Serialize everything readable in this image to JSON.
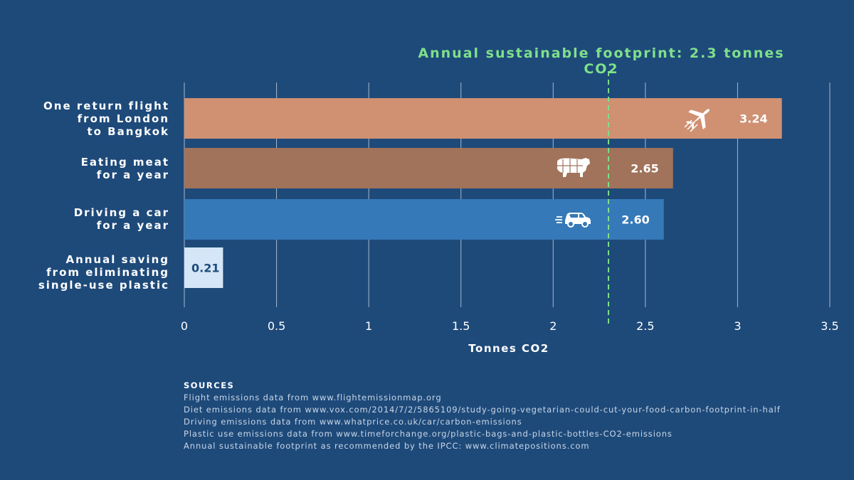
{
  "chart_data": {
    "type": "bar",
    "orientation": "horizontal",
    "categories": [
      "One return flight\nfrom London\nto Bangkok",
      "Eating meat\nfor a year",
      "Driving a car\nfor a year",
      "Annual saving\nfrom eliminating\nsingle-use plastic"
    ],
    "values": [
      3.24,
      2.65,
      2.6,
      0.21
    ],
    "value_labels": [
      "3.24",
      "2.65",
      "2.60",
      "0.21"
    ],
    "bar_colors": [
      "#d09072",
      "#a0735a",
      "#3579b8",
      "#d4e6f7"
    ],
    "value_label_colors": [
      "#ffffff",
      "#ffffff",
      "#ffffff",
      "#1e4a7a"
    ],
    "icons": [
      "airplane-icon",
      "cow-icon",
      "car-icon",
      null
    ],
    "xlabel": "Tonnes CO2",
    "xlim": [
      0,
      3.5
    ],
    "xticks": [
      0,
      0.5,
      1,
      1.5,
      2,
      2.5,
      3,
      3.5
    ],
    "xtick_labels": [
      "0",
      "0.5",
      "1",
      "1.5",
      "2",
      "2.5",
      "3",
      "3.5"
    ],
    "grid": "vertical",
    "reference_line": {
      "value": 2.3,
      "label": "Annual sustainable footprint: 2.3 tonnes CO2",
      "color": "#7fe08a",
      "style": "dashed"
    }
  },
  "sources": {
    "heading": "SOURCES",
    "lines": [
      "Flight emissions data from www.flightemissionmap.org",
      "Diet emissions data from www.vox.com/2014/7/2/5865109/study-going-vegetarian-could-cut-your-food-carbon-footprint-in-half",
      "Driving emissions data from www.whatprice.co.uk/car/carbon-emissions",
      "Plastic use emissions data from www.timeforchange.org/plastic-bags-and-plastic-bottles-CO2-emissions",
      "Annual sustainable footprint as recommended by the IPCC: www.climatepositions.com"
    ]
  },
  "colors": {
    "background": "#1e4a7a",
    "gridline": "#c9d3df",
    "reference": "#7fe08a"
  }
}
